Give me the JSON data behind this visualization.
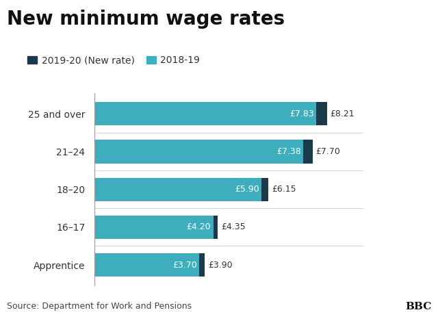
{
  "title": "New minimum wage rates",
  "categories": [
    "25 and over",
    "21–24",
    "18–20",
    "16–17",
    "Apprentice"
  ],
  "values_2018_19": [
    7.83,
    7.38,
    5.9,
    4.2,
    3.7
  ],
  "values_2019_20": [
    8.21,
    7.7,
    6.15,
    4.35,
    3.9
  ],
  "labels_2018_19": [
    "£7.83",
    "£7.38",
    "£5.90",
    "£4.20",
    "£3.70"
  ],
  "labels_2019_20": [
    "£8.21",
    "£7.70",
    "£6.15",
    "£4.35",
    "£3.90"
  ],
  "color_2018_19": "#3eadbe",
  "color_2019_20": "#1a3a4a",
  "legend_label_new": "2019-20 (New rate)",
  "legend_label_old": "2018-19",
  "source_text": "Source: Department for Work and Pensions",
  "bbc_text": "BBC",
  "background_color": "#ffffff",
  "footer_background": "#d8d8d8",
  "title_fontsize": 20,
  "label_fontsize": 9,
  "legend_fontsize": 10,
  "source_fontsize": 9,
  "bar_height": 0.62,
  "xlim_max": 9.5
}
